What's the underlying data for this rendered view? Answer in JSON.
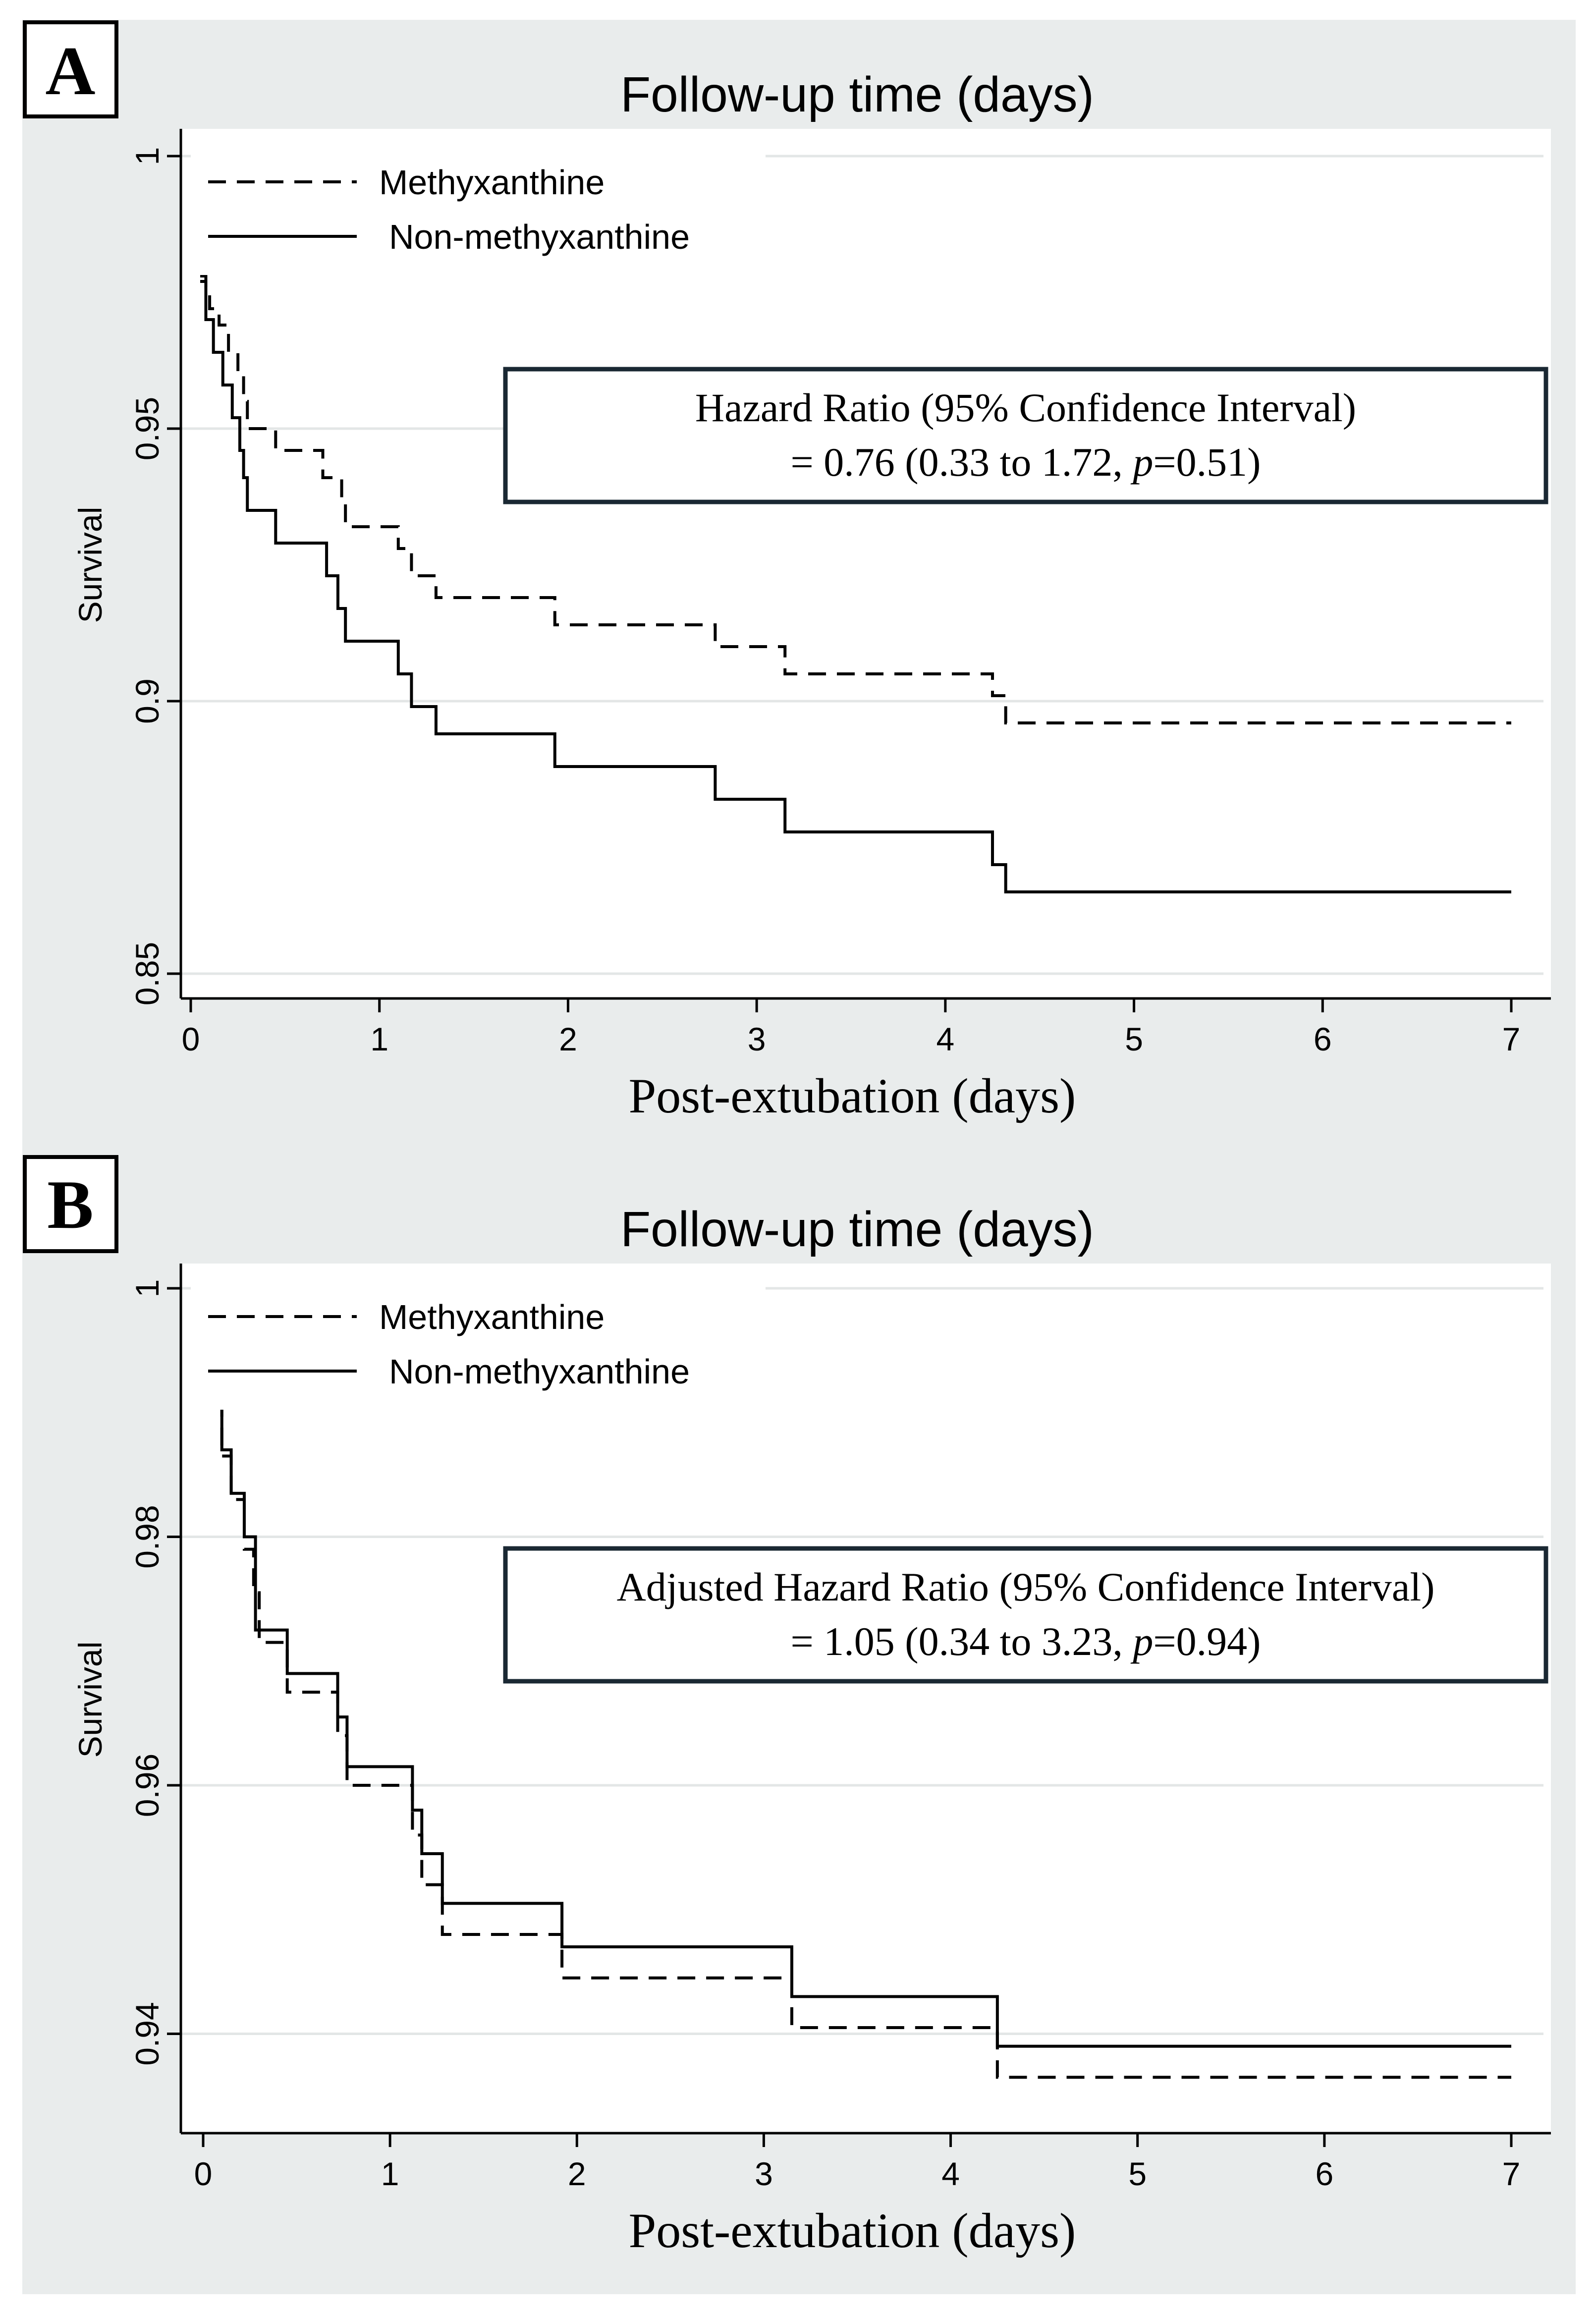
{
  "chart_data": [
    {
      "type": "line",
      "panel_label": "A",
      "title": "Follow-up time (days)",
      "xlabel": "Post-extubation (days)",
      "ylabel": "Survival",
      "xlim": [
        0,
        7
      ],
      "ylim": [
        0.85,
        1
      ],
      "xticks": [
        "0",
        "1",
        "2",
        "3",
        "4",
        "5",
        "6",
        "7"
      ],
      "yticks": [
        "0.85",
        "0.9",
        "0.95",
        "1"
      ],
      "grid": true,
      "legend": [
        "Methyxanthine",
        "Non-methyxanthine"
      ],
      "annotation": {
        "line1": "Hazard Ratio (95% Confidence Interval)",
        "line2_pre": "= 0.76 (0.33 to 1.72, ",
        "p_symbol": "p",
        "line2_post": "=0.51)"
      },
      "series": [
        {
          "name": "Methyxanthine",
          "style": "dashed",
          "steps": [
            [
              0.05,
              0.978
            ],
            [
              0.08,
              0.976
            ],
            [
              0.1,
              0.972
            ],
            [
              0.15,
              0.969
            ],
            [
              0.2,
              0.964
            ],
            [
              0.25,
              0.96
            ],
            [
              0.28,
              0.955
            ],
            [
              0.3,
              0.95
            ],
            [
              0.45,
              0.946
            ],
            [
              0.7,
              0.941
            ],
            [
              0.8,
              0.937
            ],
            [
              0.82,
              0.932
            ],
            [
              1.1,
              0.928
            ],
            [
              1.17,
              0.923
            ],
            [
              1.3,
              0.919
            ],
            [
              1.93,
              0.914
            ],
            [
              2.78,
              0.91
            ],
            [
              3.15,
              0.905
            ],
            [
              4.25,
              0.901
            ],
            [
              4.32,
              0.896
            ],
            [
              7.0,
              0.896
            ]
          ]
        },
        {
          "name": "Non-methyxanthine",
          "style": "solid",
          "steps": [
            [
              0.05,
              0.977
            ],
            [
              0.08,
              0.97
            ],
            [
              0.12,
              0.964
            ],
            [
              0.17,
              0.958
            ],
            [
              0.22,
              0.952
            ],
            [
              0.26,
              0.946
            ],
            [
              0.28,
              0.941
            ],
            [
              0.3,
              0.935
            ],
            [
              0.45,
              0.929
            ],
            [
              0.72,
              0.923
            ],
            [
              0.78,
              0.917
            ],
            [
              0.82,
              0.911
            ],
            [
              1.1,
              0.905
            ],
            [
              1.17,
              0.899
            ],
            [
              1.3,
              0.894
            ],
            [
              1.93,
              0.888
            ],
            [
              2.78,
              0.882
            ],
            [
              3.15,
              0.876
            ],
            [
              4.25,
              0.87
            ],
            [
              4.32,
              0.865
            ],
            [
              7.0,
              0.865
            ]
          ]
        }
      ]
    },
    {
      "type": "line",
      "panel_label": "B",
      "title": "Follow-up time (days)",
      "xlabel": "Post-extubation (days)",
      "ylabel": "Survival",
      "xlim": [
        0,
        7
      ],
      "ylim": [
        0.934,
        1
      ],
      "xticks": [
        "0",
        "1",
        "2",
        "3",
        "4",
        "5",
        "6",
        "7"
      ],
      "yticks": [
        "0.94",
        "0.96",
        "0.98",
        "1"
      ],
      "grid": true,
      "legend": [
        "Methyxanthine",
        "Non-methyxanthine"
      ],
      "annotation": {
        "line1": "Adjusted Hazard Ratio (95% Confidence Interval)",
        "line2_pre": "= 1.05 (0.34 to 3.23, ",
        "p_symbol": "p",
        "line2_post": "=0.94)"
      },
      "series": [
        {
          "name": "Methyxanthine",
          "style": "dashed",
          "steps": [
            [
              0.06,
              0.9905
            ],
            [
              0.1,
              0.9865
            ],
            [
              0.15,
              0.983
            ],
            [
              0.22,
              0.979
            ],
            [
              0.27,
              0.9755
            ],
            [
              0.3,
              0.9715
            ],
            [
              0.45,
              0.9675
            ],
            [
              0.72,
              0.964
            ],
            [
              0.77,
              0.96
            ],
            [
              1.12,
              0.956
            ],
            [
              1.17,
              0.952
            ],
            [
              1.28,
              0.948
            ],
            [
              1.92,
              0.9445
            ],
            [
              3.15,
              0.9405
            ],
            [
              4.25,
              0.9365
            ],
            [
              7.0,
              0.9365
            ]
          ]
        },
        {
          "name": "Non-methyxanthine",
          "style": "solid",
          "steps": [
            [
              0.07,
              0.991
            ],
            [
              0.1,
              0.987
            ],
            [
              0.15,
              0.9835
            ],
            [
              0.22,
              0.98
            ],
            [
              0.28,
              0.9725
            ],
            [
              0.45,
              0.969
            ],
            [
              0.72,
              0.9655
            ],
            [
              0.77,
              0.9615
            ],
            [
              1.12,
              0.958
            ],
            [
              1.17,
              0.9545
            ],
            [
              1.28,
              0.9505
            ],
            [
              1.92,
              0.947
            ],
            [
              3.15,
              0.943
            ],
            [
              4.25,
              0.939
            ],
            [
              7.0,
              0.939
            ]
          ]
        }
      ]
    }
  ]
}
